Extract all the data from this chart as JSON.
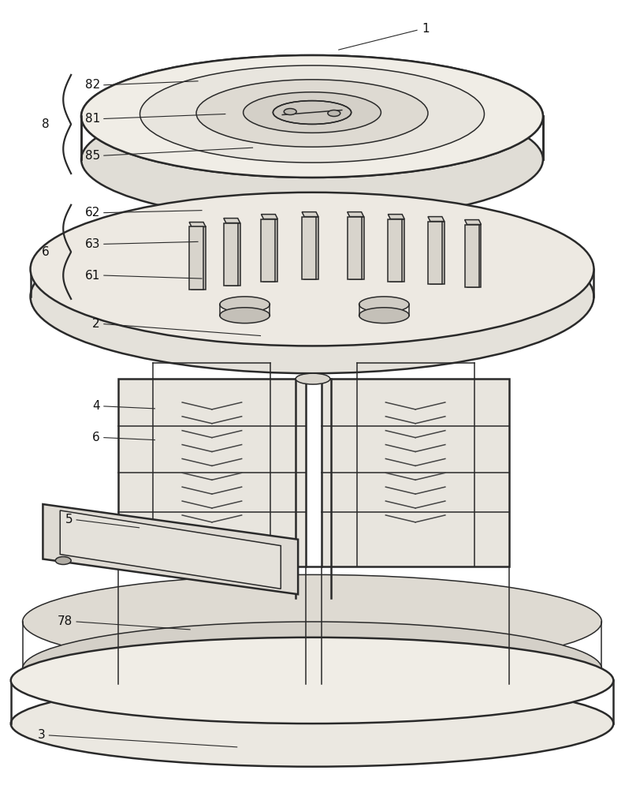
{
  "background_color": "#ffffff",
  "line_color": "#2a2a2a",
  "figsize": [
    7.93,
    10.0
  ],
  "dpi": 100,
  "font_size": 11,
  "lw_main": 1.1,
  "lw_thick": 1.8,
  "lw_thin": 0.8
}
